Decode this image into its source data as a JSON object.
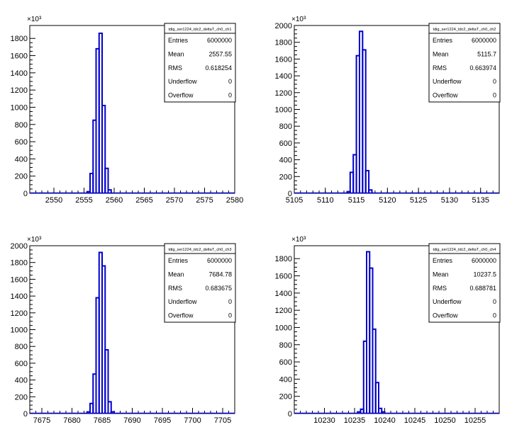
{
  "colors": {
    "line": "#0000cc",
    "axis": "#000000",
    "background": "#ffffff"
  },
  "chart_data": [
    {
      "type": "bar",
      "title": "",
      "exponent_label": "×10³",
      "stats": {
        "name": "tdig_ser1224_tdc2_deltaT_ch0_ch1",
        "rows": [
          {
            "label": "Entries",
            "value": "6000000"
          },
          {
            "label": "Mean",
            "value": "2557.55"
          },
          {
            "label": "RMS",
            "value": "0.618254"
          },
          {
            "label": "Underflow",
            "value": "0"
          },
          {
            "label": "Overflow",
            "value": "0"
          }
        ]
      },
      "xlim": [
        2546,
        2580
      ],
      "ylim": [
        0,
        1950
      ],
      "xticks": [
        2550,
        2555,
        2560,
        2565,
        2570,
        2575,
        2580
      ],
      "xtick_labels": [
        "2550",
        "2555",
        "2560",
        "2565",
        "2570",
        "2575",
        "2580"
      ],
      "yticks": [
        0,
        200,
        400,
        600,
        800,
        1000,
        1200,
        1400,
        1600,
        1800
      ],
      "ytick_labels": [
        "0",
        "200",
        "400",
        "600",
        "800",
        "1000",
        "1200",
        "1400",
        "1600",
        "1800"
      ],
      "bin_width": 0.5,
      "bins": [
        {
          "x": 2555.5,
          "y": 20
        },
        {
          "x": 2556.0,
          "y": 230
        },
        {
          "x": 2556.5,
          "y": 850
        },
        {
          "x": 2557.0,
          "y": 1680
        },
        {
          "x": 2557.5,
          "y": 1860
        },
        {
          "x": 2558.0,
          "y": 1020
        },
        {
          "x": 2558.5,
          "y": 290
        },
        {
          "x": 2559.0,
          "y": 40
        }
      ]
    },
    {
      "type": "bar",
      "title": "",
      "exponent_label": "×10³",
      "stats": {
        "name": "tdig_ser1224_tdc2_deltaT_ch0_ch2",
        "rows": [
          {
            "label": "Entries",
            "value": "6000000"
          },
          {
            "label": "Mean",
            "value": "5115.7"
          },
          {
            "label": "RMS",
            "value": "0.663974"
          },
          {
            "label": "Underflow",
            "value": "0"
          },
          {
            "label": "Overflow",
            "value": "0"
          }
        ]
      },
      "xlim": [
        5105,
        5138
      ],
      "ylim": [
        0,
        2000
      ],
      "xticks": [
        5105,
        5110,
        5115,
        5120,
        5125,
        5130,
        5135
      ],
      "xtick_labels": [
        "5105",
        "5110",
        "5115",
        "5120",
        "5125",
        "5130",
        "5135"
      ],
      "yticks": [
        0,
        200,
        400,
        600,
        800,
        1000,
        1200,
        1400,
        1600,
        1800,
        2000
      ],
      "ytick_labels": [
        "0",
        "200",
        "400",
        "600",
        "800",
        "1000",
        "1200",
        "1400",
        "1600",
        "1800",
        "2000"
      ],
      "bin_width": 0.5,
      "bins": [
        {
          "x": 5113.5,
          "y": 20
        },
        {
          "x": 5114.0,
          "y": 250
        },
        {
          "x": 5114.5,
          "y": 460
        },
        {
          "x": 5115.0,
          "y": 1640
        },
        {
          "x": 5115.5,
          "y": 1930
        },
        {
          "x": 5116.0,
          "y": 1710
        },
        {
          "x": 5116.5,
          "y": 270
        },
        {
          "x": 5117.0,
          "y": 40
        }
      ]
    },
    {
      "type": "bar",
      "title": "",
      "exponent_label": "×10³",
      "stats": {
        "name": "tdig_ser1224_tdc2_deltaT_ch0_ch3",
        "rows": [
          {
            "label": "Entries",
            "value": "6000000"
          },
          {
            "label": "Mean",
            "value": "7684.78"
          },
          {
            "label": "RMS",
            "value": "0.683675"
          },
          {
            "label": "Underflow",
            "value": "0"
          },
          {
            "label": "Overflow",
            "value": "0"
          }
        ]
      },
      "xlim": [
        7673,
        7707
      ],
      "ylim": [
        0,
        2000
      ],
      "xticks": [
        7675,
        7680,
        7685,
        7690,
        7695,
        7700,
        7705
      ],
      "xtick_labels": [
        "7675",
        "7680",
        "7685",
        "7690",
        "7695",
        "7700",
        "7705"
      ],
      "yticks": [
        0,
        200,
        400,
        600,
        800,
        1000,
        1200,
        1400,
        1600,
        1800,
        2000
      ],
      "ytick_labels": [
        "0",
        "200",
        "400",
        "600",
        "800",
        "1000",
        "1200",
        "1400",
        "1600",
        "1800",
        "2000"
      ],
      "bin_width": 0.5,
      "bins": [
        {
          "x": 7682.5,
          "y": 20
        },
        {
          "x": 7683.0,
          "y": 120
        },
        {
          "x": 7683.5,
          "y": 470
        },
        {
          "x": 7684.0,
          "y": 1380
        },
        {
          "x": 7684.5,
          "y": 1920
        },
        {
          "x": 7685.0,
          "y": 1760
        },
        {
          "x": 7685.5,
          "y": 760
        },
        {
          "x": 7686.0,
          "y": 140
        },
        {
          "x": 7686.5,
          "y": 20
        }
      ]
    },
    {
      "type": "bar",
      "title": "",
      "exponent_label": "×10³",
      "stats": {
        "name": "tdig_ser1224_tdc2_deltaT_ch0_ch4",
        "rows": [
          {
            "label": "Entries",
            "value": "6000000"
          },
          {
            "label": "Mean",
            "value": "10237.5"
          },
          {
            "label": "RMS",
            "value": "0.688781"
          },
          {
            "label": "Underflow",
            "value": "0"
          },
          {
            "label": "Overflow",
            "value": "0"
          }
        ]
      },
      "xlim": [
        10225,
        10259
      ],
      "ylim": [
        0,
        1950
      ],
      "xticks": [
        10230,
        10235,
        10240,
        10245,
        10250,
        10255
      ],
      "xtick_labels": [
        "10230",
        "10235",
        "10240",
        "10245",
        "10250",
        "10255"
      ],
      "yticks": [
        0,
        200,
        400,
        600,
        800,
        1000,
        1200,
        1400,
        1600,
        1800
      ],
      "ytick_labels": [
        "0",
        "200",
        "400",
        "600",
        "800",
        "1000",
        "1200",
        "1400",
        "1600",
        "1800"
      ],
      "bin_width": 0.5,
      "bins": [
        {
          "x": 10235.5,
          "y": 20
        },
        {
          "x": 10236.0,
          "y": 50
        },
        {
          "x": 10236.5,
          "y": 840
        },
        {
          "x": 10237.0,
          "y": 1880
        },
        {
          "x": 10237.5,
          "y": 1690
        },
        {
          "x": 10238.0,
          "y": 980
        },
        {
          "x": 10238.5,
          "y": 360
        },
        {
          "x": 10239.0,
          "y": 60
        },
        {
          "x": 10239.5,
          "y": 20
        }
      ]
    }
  ]
}
